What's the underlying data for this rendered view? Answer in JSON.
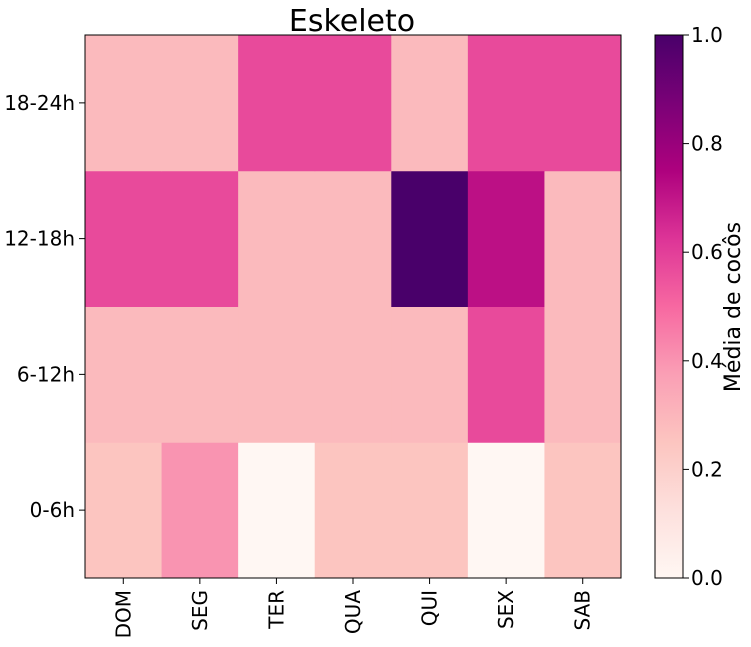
{
  "chart_data": {
    "type": "heatmap",
    "title": "Eskeleto",
    "x_categories": [
      "DOM",
      "SEG",
      "TER",
      "QUA",
      "QUI",
      "SEX",
      "SAB"
    ],
    "y_categories": [
      "0-6h",
      "6-12h",
      "12-18h",
      "18-24h"
    ],
    "values": [
      [
        0.25,
        0.4,
        0.0,
        0.25,
        0.25,
        0.0,
        0.25
      ],
      [
        0.286,
        0.286,
        0.286,
        0.286,
        0.286,
        0.571,
        0.286
      ],
      [
        0.571,
        0.571,
        0.286,
        0.286,
        1.0,
        0.714,
        0.286
      ],
      [
        0.286,
        0.286,
        0.571,
        0.571,
        0.286,
        0.571,
        0.571
      ]
    ],
    "colorbar": {
      "label": "Média de cocôs",
      "range": [
        0.0,
        1.0
      ],
      "ticks": [
        0.0,
        0.2,
        0.4,
        0.6,
        0.8,
        1.0
      ],
      "tick_labels": [
        "0.0",
        "0.2",
        "0.4",
        "0.6",
        "0.8",
        "1.0"
      ],
      "colormap": "RdPu",
      "colormap_stops": [
        "#fff7f3",
        "#fde0dd",
        "#fcc5c0",
        "#fa9fb5",
        "#f768a1",
        "#dd3497",
        "#ae017e",
        "#7a0177",
        "#49006a"
      ]
    },
    "grid": false
  }
}
